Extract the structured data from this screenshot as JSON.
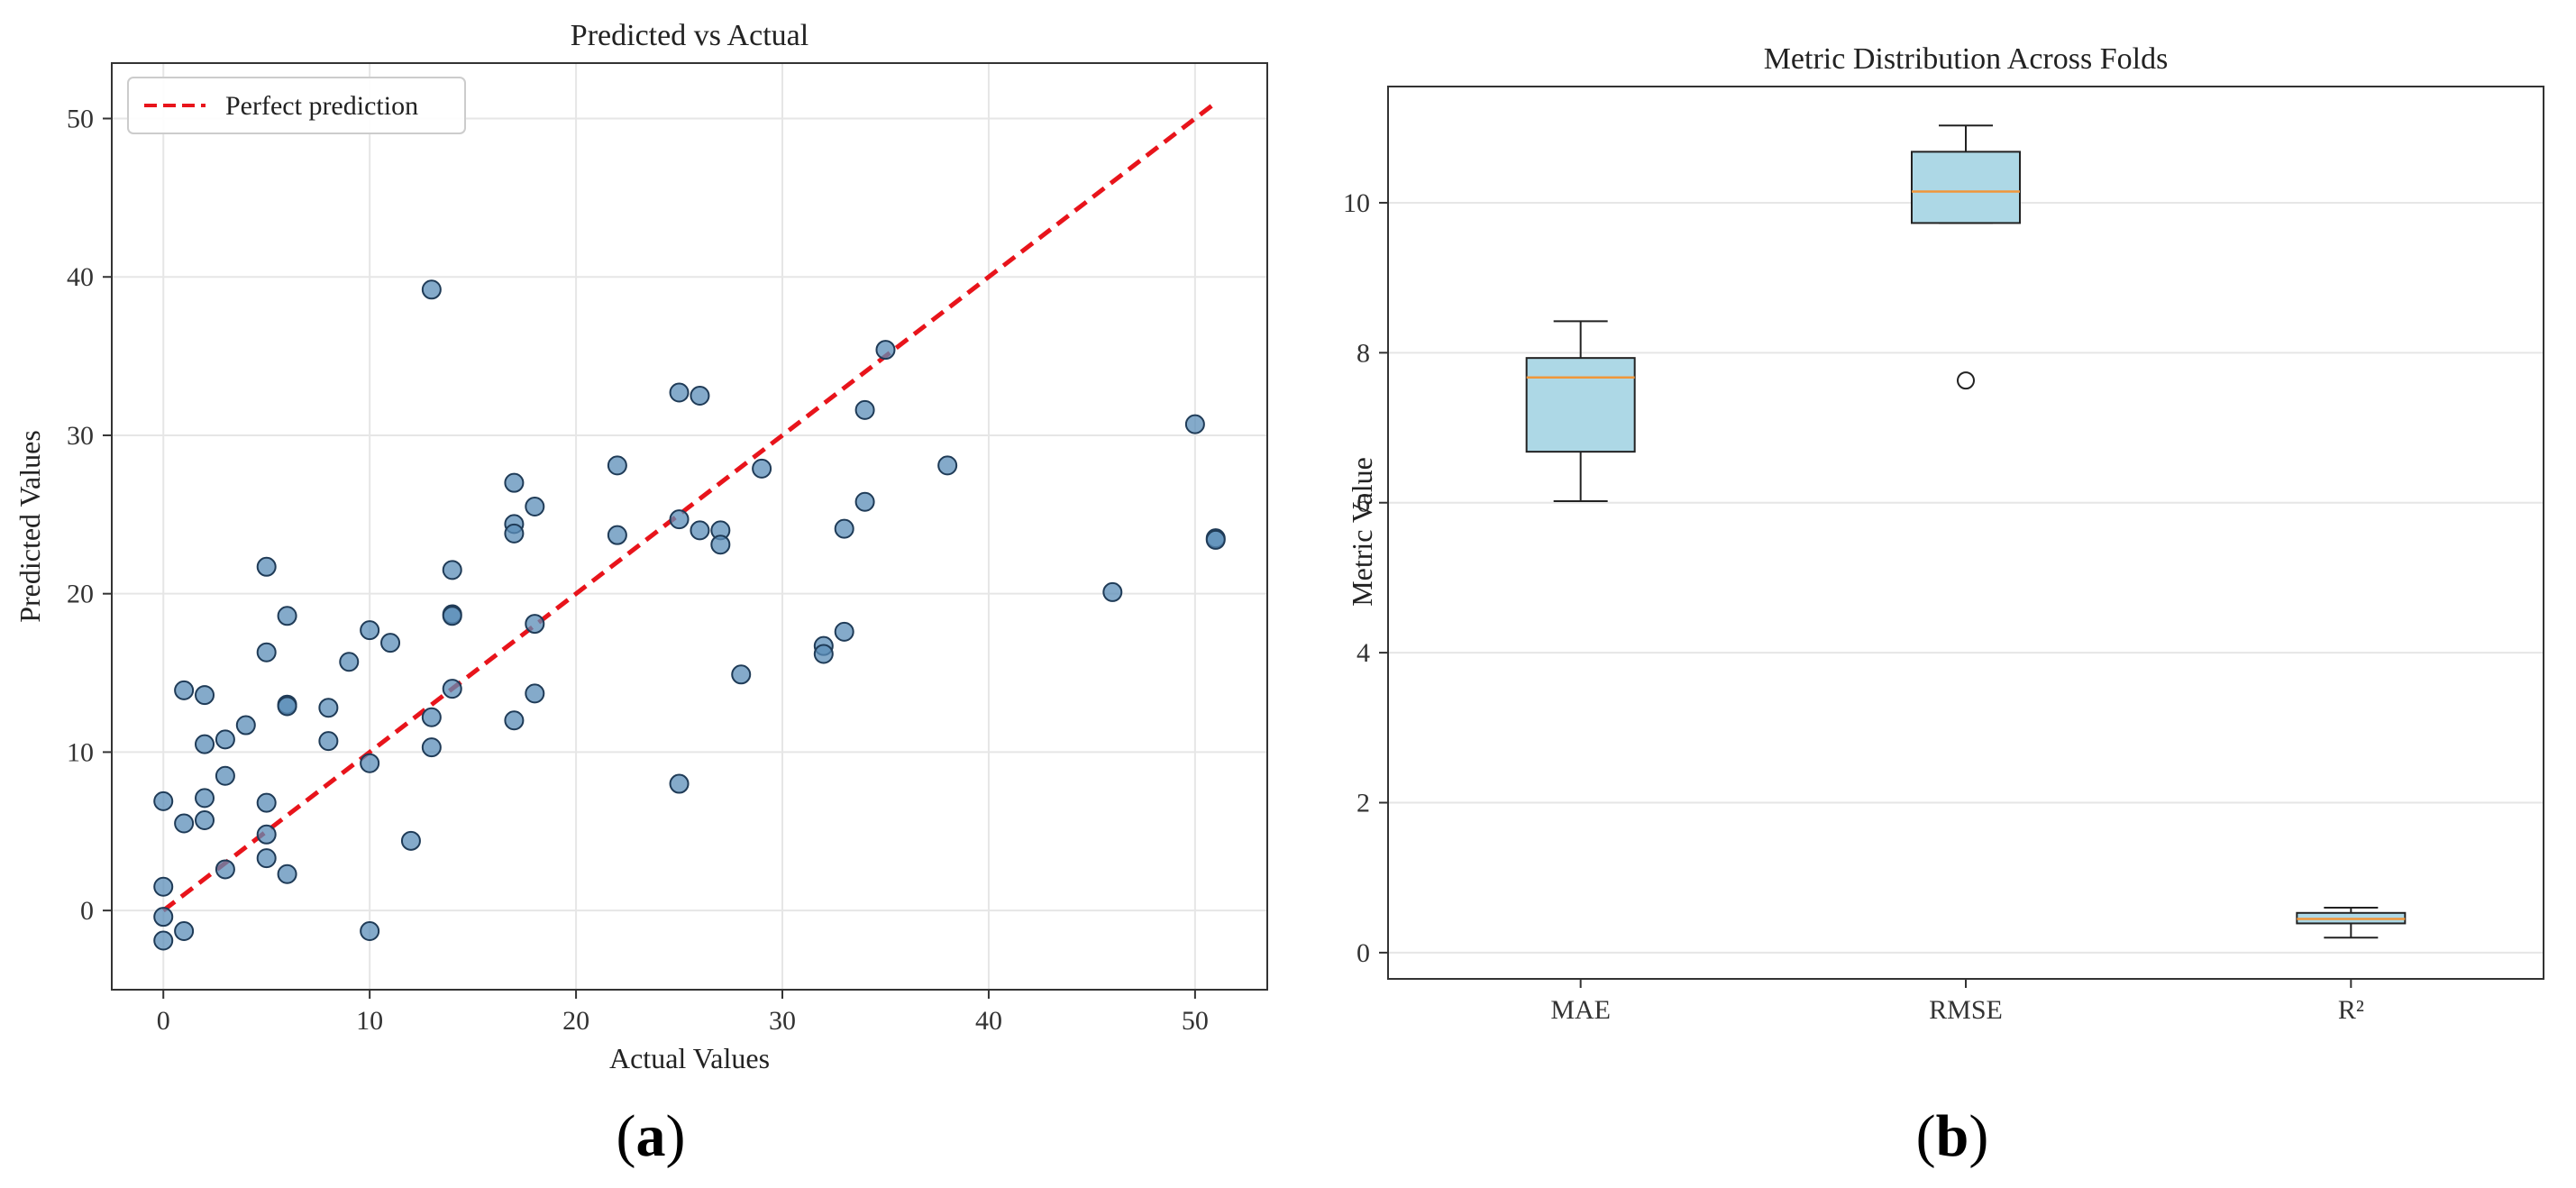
{
  "panels": [
    {
      "label_open": "(",
      "label_letter": "a",
      "label_close": ")"
    },
    {
      "label_open": "(",
      "label_letter": "b",
      "label_close": ")"
    }
  ],
  "colors": {
    "scatter_fill": "#5b8db8",
    "scatter_edge": "#1f3b57",
    "perfect_line": "#e8141b",
    "box_fill": "#add8e6",
    "median": "#f0963a",
    "grid": "#e6e6e6"
  },
  "chart_data": [
    {
      "type": "scatter",
      "title": "Predicted vs Actual",
      "xlabel": "Actual Values",
      "ylabel": "Predicted Values",
      "xlim": [
        -2.5,
        53.5
      ],
      "ylim": [
        -5,
        53.5
      ],
      "xticks": [
        0,
        10,
        20,
        30,
        40,
        50
      ],
      "yticks": [
        0,
        10,
        20,
        30,
        40,
        50
      ],
      "grid": true,
      "legend": {
        "position": "top-left",
        "entries": [
          "Perfect prediction"
        ]
      },
      "reference_line": {
        "name": "Perfect prediction",
        "x": [
          0,
          51
        ],
        "y": [
          0,
          51
        ],
        "style": "dashed"
      },
      "points": [
        [
          0,
          6.9
        ],
        [
          0,
          1.5
        ],
        [
          0,
          -0.4
        ],
        [
          0,
          -1.9
        ],
        [
          1,
          13.9
        ],
        [
          1,
          5.5
        ],
        [
          1,
          -1.3
        ],
        [
          2,
          13.6
        ],
        [
          2,
          10.5
        ],
        [
          2,
          7.1
        ],
        [
          2,
          5.7
        ],
        [
          3,
          10.8
        ],
        [
          3,
          8.5
        ],
        [
          3,
          2.6
        ],
        [
          4,
          11.7
        ],
        [
          5,
          21.7
        ],
        [
          5,
          16.3
        ],
        [
          5,
          6.8
        ],
        [
          5,
          4.8
        ],
        [
          5,
          3.3
        ],
        [
          6,
          18.6
        ],
        [
          6,
          13.0
        ],
        [
          6,
          12.9
        ],
        [
          6,
          2.3
        ],
        [
          8,
          12.8
        ],
        [
          8,
          10.7
        ],
        [
          9,
          15.7
        ],
        [
          10,
          17.7
        ],
        [
          10,
          9.3
        ],
        [
          10,
          -1.3
        ],
        [
          11,
          16.9
        ],
        [
          12,
          4.4
        ],
        [
          13,
          39.2
        ],
        [
          13,
          12.2
        ],
        [
          13,
          10.3
        ],
        [
          14,
          21.5
        ],
        [
          14,
          18.7
        ],
        [
          14,
          18.6
        ],
        [
          14,
          14.0
        ],
        [
          17,
          27.0
        ],
        [
          17,
          24.4
        ],
        [
          17,
          23.8
        ],
        [
          17,
          12.0
        ],
        [
          18,
          25.5
        ],
        [
          18,
          18.1
        ],
        [
          18,
          13.7
        ],
        [
          22,
          28.1
        ],
        [
          22,
          23.7
        ],
        [
          25,
          32.7
        ],
        [
          25,
          24.7
        ],
        [
          25,
          8.0
        ],
        [
          26,
          32.5
        ],
        [
          26,
          24.0
        ],
        [
          27,
          24.0
        ],
        [
          27,
          23.1
        ],
        [
          28,
          14.9
        ],
        [
          29,
          27.9
        ],
        [
          32,
          16.7
        ],
        [
          32,
          16.2
        ],
        [
          33,
          24.1
        ],
        [
          33,
          17.6
        ],
        [
          34,
          31.6
        ],
        [
          34,
          25.8
        ],
        [
          35,
          35.4
        ],
        [
          38,
          28.1
        ],
        [
          46,
          20.1
        ],
        [
          50,
          30.7
        ],
        [
          51,
          23.5
        ],
        [
          51,
          23.4
        ]
      ]
    },
    {
      "type": "box",
      "title": "Metric Distribution Across Folds",
      "xlabel": "",
      "ylabel": "Metric Value",
      "ylim": [
        -0.35,
        11.55
      ],
      "yticks": [
        0,
        2,
        4,
        6,
        8,
        10
      ],
      "grid": true,
      "categories": [
        "MAE",
        "RMSE",
        "R²"
      ],
      "boxes": [
        {
          "name": "MAE",
          "whisker_low": 6.02,
          "q1": 6.68,
          "median": 7.67,
          "q3": 7.93,
          "whisker_high": 8.42,
          "outliers": []
        },
        {
          "name": "RMSE",
          "whisker_low": 9.73,
          "q1": 9.73,
          "median": 10.15,
          "q3": 10.68,
          "whisker_high": 11.03,
          "outliers": [
            7.63
          ]
        },
        {
          "name": "R²",
          "whisker_low": 0.2,
          "q1": 0.39,
          "median": 0.45,
          "q3": 0.53,
          "whisker_high": 0.6,
          "outliers": []
        }
      ]
    }
  ]
}
